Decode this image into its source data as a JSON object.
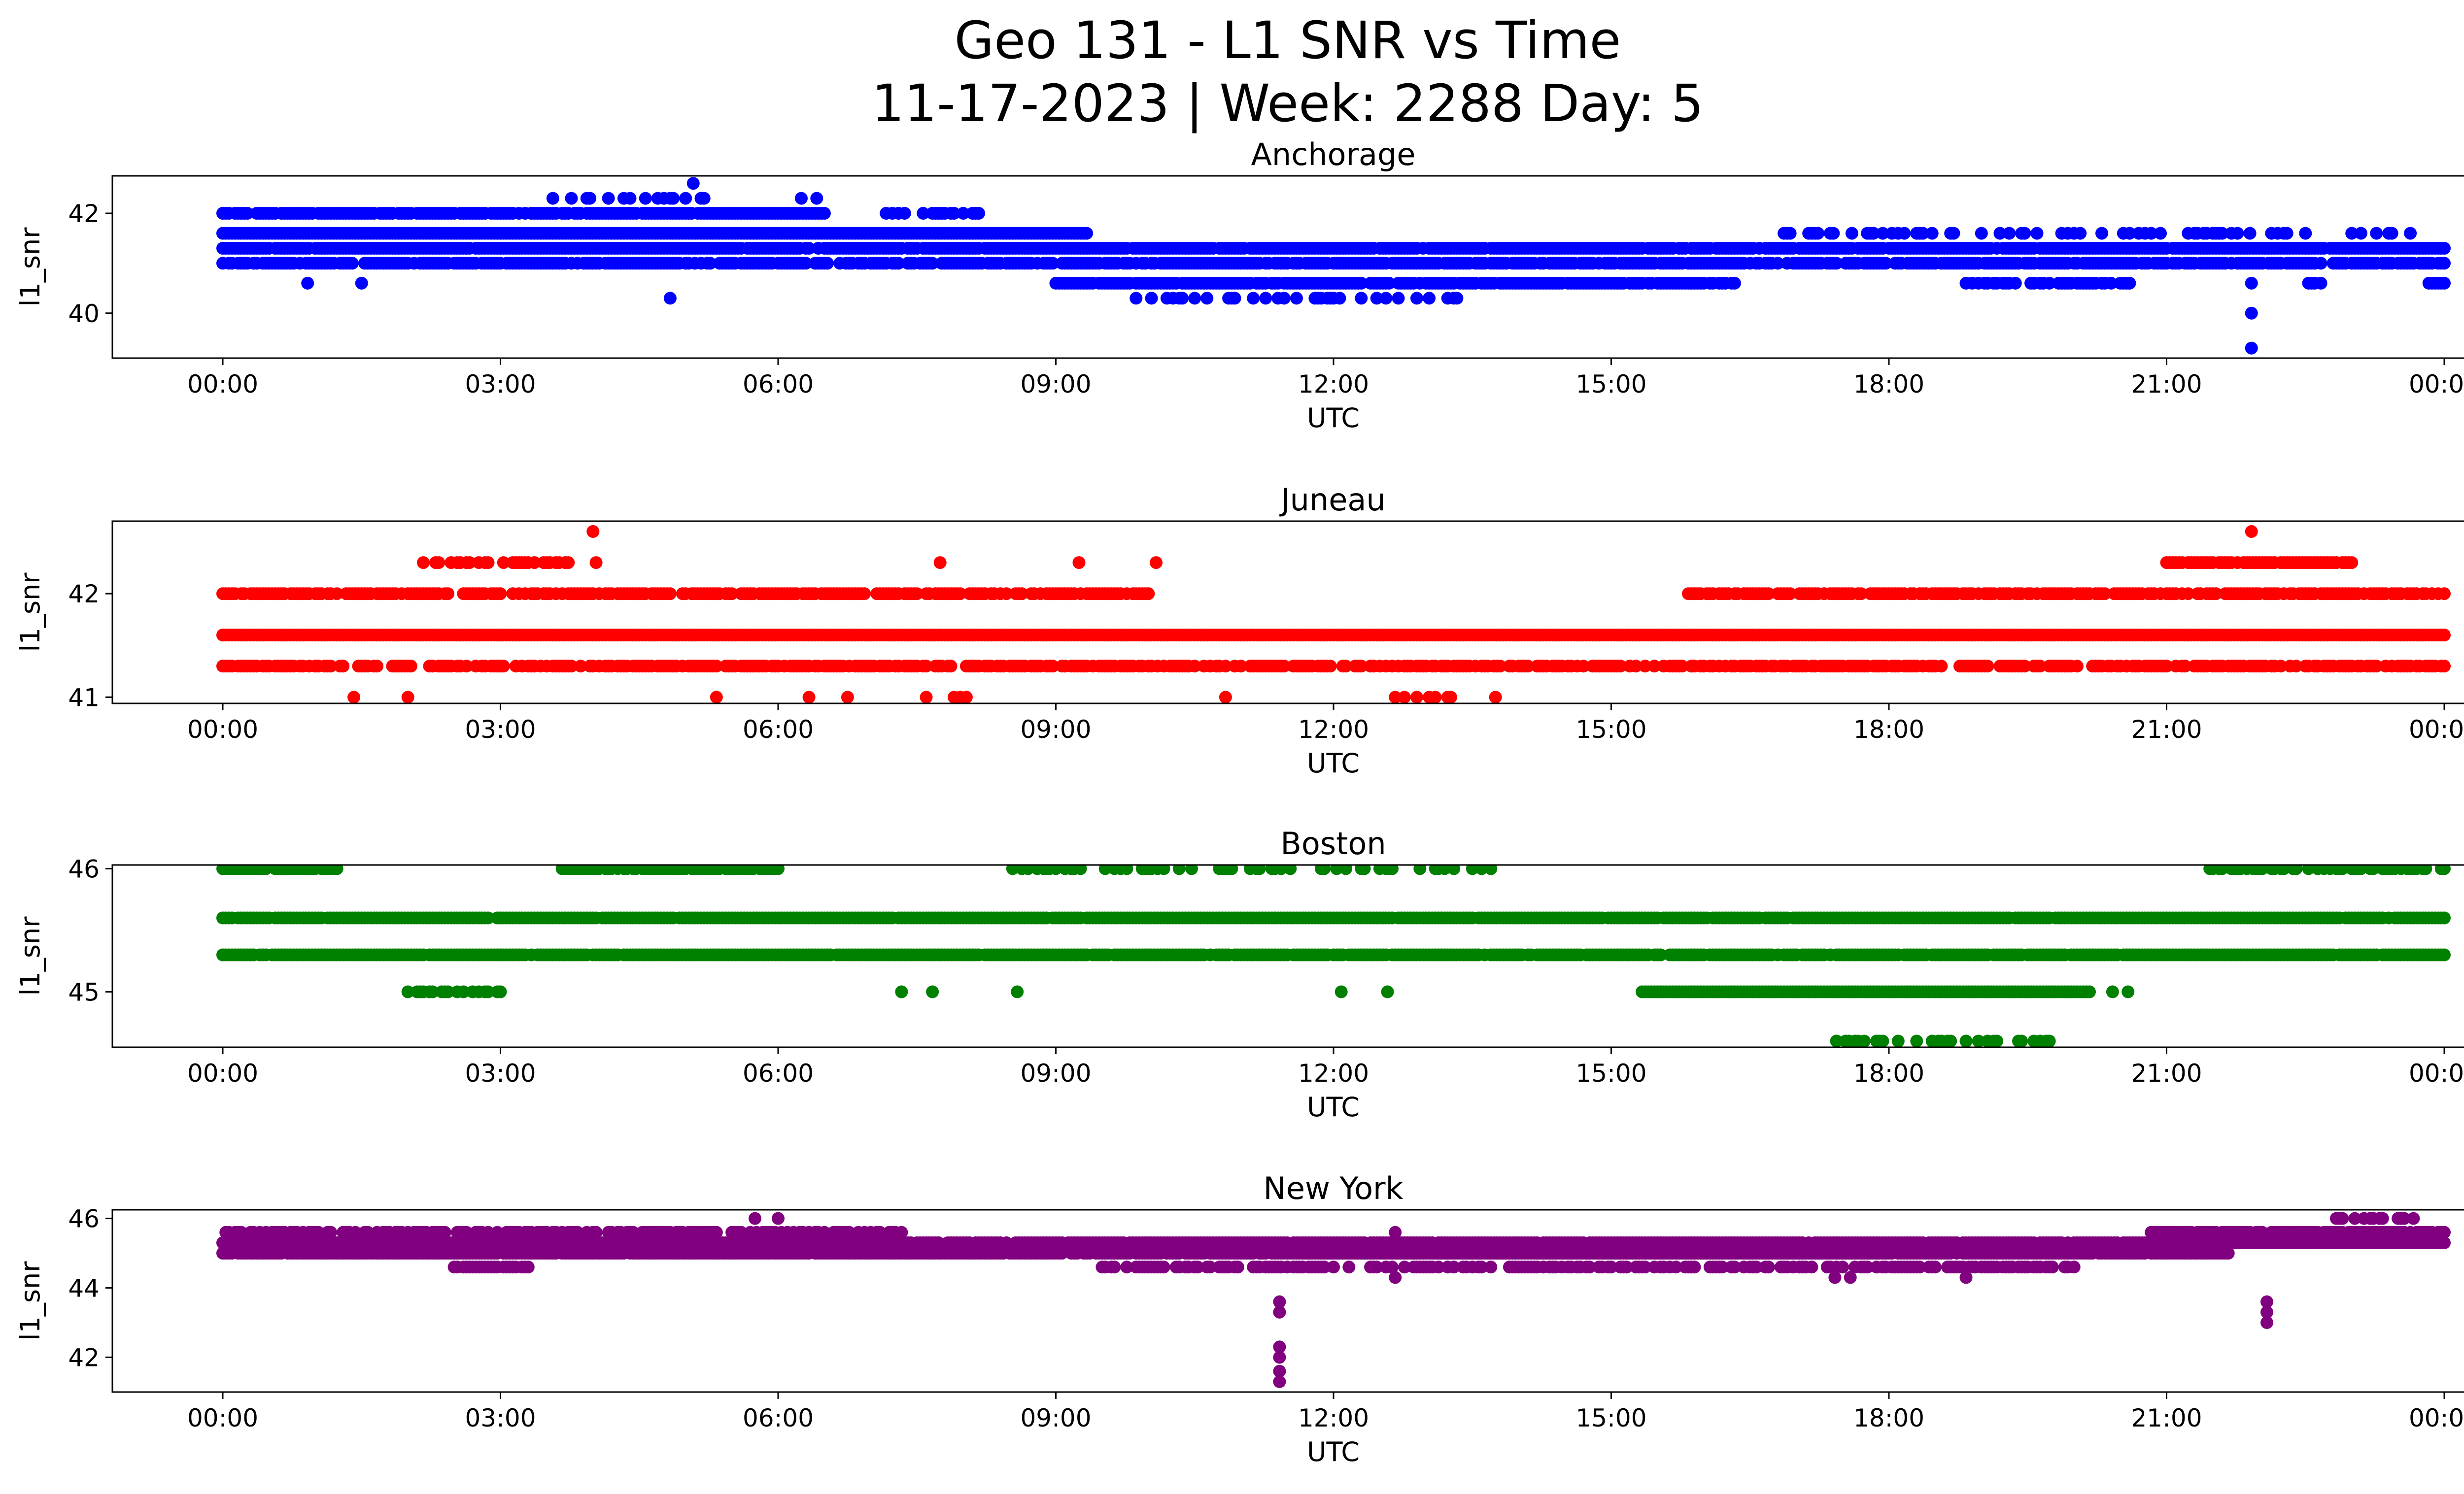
{
  "figure": {
    "title": "Geo 131 - L1 SNR vs Time",
    "subtitle": "11-17-2023 | Week: 2288 Day: 5"
  },
  "chart_data": [
    {
      "type": "scatter",
      "title": "Anchorage",
      "xlabel": "UTC",
      "ylabel": "l1_snr",
      "color": "#0000ff",
      "x_range": [
        "00:00",
        "24:00"
      ],
      "x_ticks": [
        "00:00",
        "03:00",
        "06:00",
        "09:00",
        "12:00",
        "15:00",
        "18:00",
        "21:00",
        "00:00"
      ],
      "ylim": [
        39.1,
        42.75
      ],
      "y_ticks": [
        40,
        42
      ],
      "grid": false,
      "snr_levels": [
        40.3,
        40.6,
        41.0,
        41.3,
        41.6,
        42.0,
        42.3
      ],
      "segments": [
        {
          "level": 40.3,
          "start": "09:50",
          "end": "13:20",
          "density": 0.35
        },
        {
          "level": 40.6,
          "start": "09:00",
          "end": "16:20",
          "density": 0.9
        },
        {
          "level": 40.6,
          "start": "18:50",
          "end": "20:40",
          "density": 0.6
        },
        {
          "level": 40.6,
          "start": "22:30",
          "end": "22:40",
          "density": 0.5
        },
        {
          "level": 40.6,
          "start": "23:50",
          "end": "24:00",
          "density": 0.9
        },
        {
          "level": 41.0,
          "start": "00:00",
          "end": "24:00",
          "density": 0.85
        },
        {
          "level": 41.3,
          "start": "00:00",
          "end": "24:00",
          "density": 0.95
        },
        {
          "level": 41.6,
          "start": "00:00",
          "end": "09:20",
          "density": 1.0
        },
        {
          "level": 41.6,
          "start": "16:40",
          "end": "23:40",
          "density": 0.3
        },
        {
          "level": 42.0,
          "start": "00:00",
          "end": "06:30",
          "density": 0.95
        },
        {
          "level": 42.0,
          "start": "07:10",
          "end": "08:10",
          "density": 0.5
        },
        {
          "level": 42.3,
          "start": "03:30",
          "end": "05:20",
          "density": 0.3
        }
      ],
      "outliers": [
        {
          "time": "00:55",
          "value": 40.6
        },
        {
          "time": "01:30",
          "value": 40.6
        },
        {
          "time": "04:50",
          "value": 40.3
        },
        {
          "time": "05:05",
          "value": 42.6
        },
        {
          "time": "06:15",
          "value": 42.3
        },
        {
          "time": "06:25",
          "value": 42.3
        },
        {
          "time": "21:55",
          "value": 40.6
        },
        {
          "time": "21:55",
          "value": 40.0
        },
        {
          "time": "21:55",
          "value": 39.3
        }
      ]
    },
    {
      "type": "scatter",
      "title": "Juneau",
      "xlabel": "UTC",
      "ylabel": "l1_snr",
      "color": "#ff0000",
      "x_range": [
        "00:00",
        "24:00"
      ],
      "x_ticks": [
        "00:00",
        "03:00",
        "06:00",
        "09:00",
        "12:00",
        "15:00",
        "18:00",
        "21:00",
        "00:00"
      ],
      "ylim": [
        40.94,
        42.7
      ],
      "y_ticks": [
        41,
        42
      ],
      "grid": false,
      "snr_levels": [
        41.0,
        41.3,
        41.6,
        42.0,
        42.3,
        42.6
      ],
      "segments": [
        {
          "level": 41.0,
          "start": "07:30",
          "end": "08:10",
          "density": 0.25
        },
        {
          "level": 41.0,
          "start": "12:30",
          "end": "13:20",
          "density": 0.4
        },
        {
          "level": 41.3,
          "start": "00:00",
          "end": "24:00",
          "density": 0.7
        },
        {
          "level": 41.6,
          "start": "00:00",
          "end": "24:00",
          "density": 1.0
        },
        {
          "level": 42.0,
          "start": "00:00",
          "end": "10:00",
          "density": 0.75
        },
        {
          "level": 42.0,
          "start": "15:50",
          "end": "24:00",
          "density": 0.8
        },
        {
          "level": 42.3,
          "start": "02:10",
          "end": "04:10",
          "density": 0.45
        },
        {
          "level": 42.3,
          "start": "21:00",
          "end": "23:00",
          "density": 0.9
        }
      ],
      "outliers": [
        {
          "time": "01:25",
          "value": 41.0
        },
        {
          "time": "02:00",
          "value": 41.0
        },
        {
          "time": "04:00",
          "value": 42.6
        },
        {
          "time": "05:20",
          "value": 41.0
        },
        {
          "time": "06:20",
          "value": 41.0
        },
        {
          "time": "06:45",
          "value": 41.0
        },
        {
          "time": "10:50",
          "value": 41.0
        },
        {
          "time": "13:45",
          "value": 41.0
        },
        {
          "time": "21:55",
          "value": 42.6
        },
        {
          "time": "09:15",
          "value": 42.3
        },
        {
          "time": "10:05",
          "value": 42.3
        },
        {
          "time": "07:45",
          "value": 42.3
        }
      ]
    },
    {
      "type": "scatter",
      "title": "Boston",
      "xlabel": "UTC",
      "ylabel": "l1_snr",
      "color": "#008000",
      "x_range": [
        "00:00",
        "24:00"
      ],
      "x_ticks": [
        "00:00",
        "03:00",
        "06:00",
        "09:00",
        "12:00",
        "15:00",
        "18:00",
        "21:00",
        "00:00"
      ],
      "ylim": [
        44.55,
        46.03
      ],
      "y_ticks": [
        45,
        46
      ],
      "grid": false,
      "snr_levels": [
        44.6,
        45.0,
        45.3,
        45.6,
        46.0
      ],
      "segments": [
        {
          "level": 44.6,
          "start": "17:20",
          "end": "19:50",
          "density": 0.3
        },
        {
          "level": 45.0,
          "start": "02:00",
          "end": "03:10",
          "density": 0.6
        },
        {
          "level": 45.0,
          "start": "15:20",
          "end": "20:10",
          "density": 1.0
        },
        {
          "level": 45.3,
          "start": "00:00",
          "end": "24:00",
          "density": 0.95
        },
        {
          "level": 45.6,
          "start": "00:00",
          "end": "24:00",
          "density": 0.97
        },
        {
          "level": 46.0,
          "start": "00:00",
          "end": "01:15",
          "density": 0.95
        },
        {
          "level": 46.0,
          "start": "03:40",
          "end": "06:00",
          "density": 0.7
        },
        {
          "level": 46.0,
          "start": "08:30",
          "end": "13:50",
          "density": 0.3
        },
        {
          "level": 46.0,
          "start": "21:20",
          "end": "24:00",
          "density": 0.45
        }
      ],
      "outliers": [
        {
          "time": "07:20",
          "value": 45.0
        },
        {
          "time": "07:40",
          "value": 45.0
        },
        {
          "time": "08:35",
          "value": 45.0
        },
        {
          "time": "12:05",
          "value": 45.0
        },
        {
          "time": "12:35",
          "value": 45.0
        },
        {
          "time": "20:25",
          "value": 45.0
        },
        {
          "time": "20:35",
          "value": 45.0
        }
      ]
    },
    {
      "type": "scatter",
      "title": "New York",
      "xlabel": "UTC",
      "ylabel": "l1_snr",
      "color": "#800080",
      "x_range": [
        "00:00",
        "24:00"
      ],
      "x_ticks": [
        "00:00",
        "03:00",
        "06:00",
        "09:00",
        "12:00",
        "15:00",
        "18:00",
        "21:00",
        "00:00"
      ],
      "ylim": [
        41.0,
        46.25
      ],
      "y_ticks": [
        42,
        44,
        46
      ],
      "grid": false,
      "snr_levels": [
        44.3,
        44.6,
        45.0,
        45.3,
        45.6,
        46.0
      ],
      "segments": [
        {
          "level": 44.6,
          "start": "02:30",
          "end": "03:20",
          "density": 0.8
        },
        {
          "level": 44.6,
          "start": "09:30",
          "end": "20:00",
          "density": 0.55
        },
        {
          "level": 45.0,
          "start": "00:00",
          "end": "21:40",
          "density": 0.95
        },
        {
          "level": 45.0,
          "start": "11:40",
          "end": "18:00",
          "density": 1.0
        },
        {
          "level": 45.3,
          "start": "00:00",
          "end": "24:00",
          "density": 0.97
        },
        {
          "level": 45.6,
          "start": "00:00",
          "end": "07:20",
          "density": 0.7
        },
        {
          "level": 45.6,
          "start": "20:50",
          "end": "24:00",
          "density": 0.9
        },
        {
          "level": 46.0,
          "start": "22:40",
          "end": "23:40",
          "density": 0.5
        }
      ],
      "outliers": [
        {
          "time": "05:45",
          "value": 46.0
        },
        {
          "time": "06:00",
          "value": 46.0
        },
        {
          "time": "11:25",
          "value": 43.6
        },
        {
          "time": "11:25",
          "value": 43.3
        },
        {
          "time": "11:25",
          "value": 42.3
        },
        {
          "time": "11:25",
          "value": 42.0
        },
        {
          "time": "11:25",
          "value": 41.6
        },
        {
          "time": "11:25",
          "value": 41.3
        },
        {
          "time": "12:40",
          "value": 45.6
        },
        {
          "time": "12:40",
          "value": 44.3
        },
        {
          "time": "22:05",
          "value": 43.6
        },
        {
          "time": "22:05",
          "value": 43.3
        },
        {
          "time": "22:05",
          "value": 43.0
        },
        {
          "time": "17:25",
          "value": 44.3
        },
        {
          "time": "17:35",
          "value": 44.3
        },
        {
          "time": "18:50",
          "value": 44.3
        }
      ]
    }
  ]
}
